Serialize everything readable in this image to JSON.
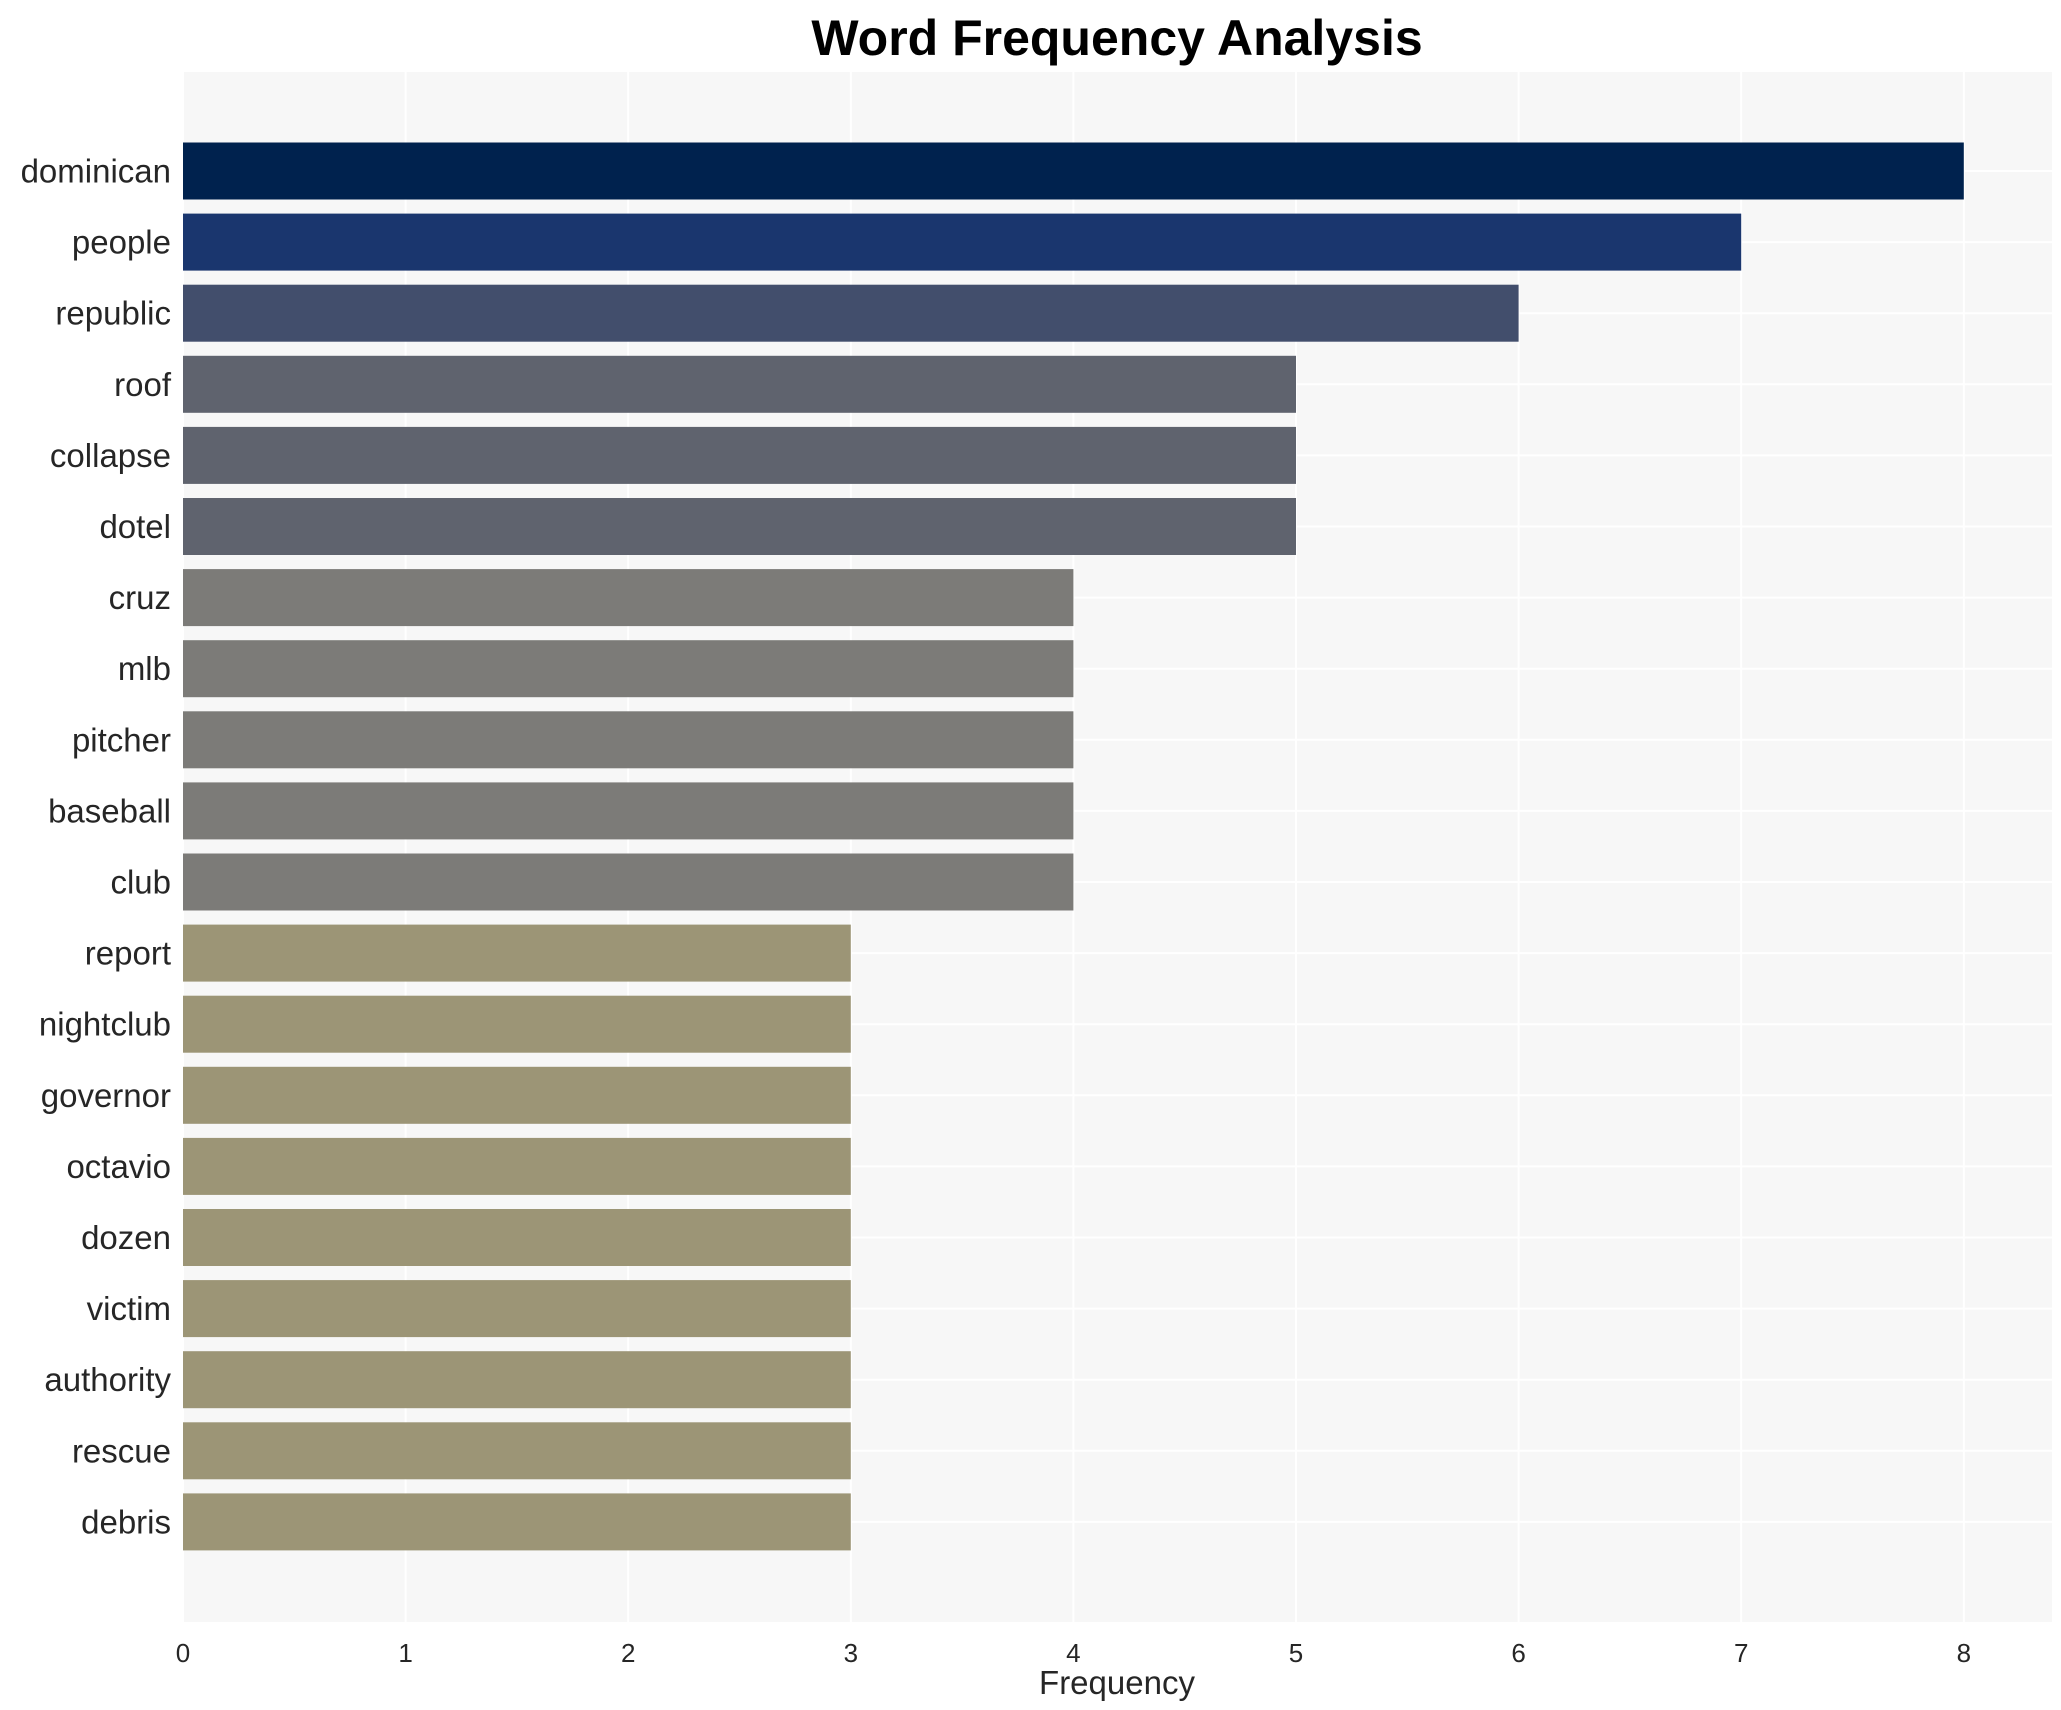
{
  "chart_data": {
    "type": "bar",
    "orientation": "horizontal",
    "title": "Word Frequency Analysis",
    "xlabel": "Frequency",
    "ylabel": "",
    "xlim": [
      0,
      8.4
    ],
    "x_ticks": [
      0,
      1,
      2,
      3,
      4,
      5,
      6,
      7,
      8
    ],
    "grid": true,
    "categories": [
      "dominican",
      "people",
      "republic",
      "roof",
      "collapse",
      "dotel",
      "cruz",
      "mlb",
      "pitcher",
      "baseball",
      "club",
      "report",
      "nightclub",
      "governor",
      "octavio",
      "dozen",
      "victim",
      "authority",
      "rescue",
      "debris"
    ],
    "values": [
      8,
      7,
      6,
      5,
      5,
      5,
      4,
      4,
      4,
      4,
      4,
      3,
      3,
      3,
      3,
      3,
      3,
      3,
      3,
      3
    ],
    "colors": {
      "8": "#00224e",
      "7": "#1a366e",
      "6": "#424e6c",
      "5": "#5f636e",
      "4": "#7c7b78",
      "3": "#9c9576"
    },
    "plot_background": "#f7f7f7",
    "grid_color": "#ffffff"
  }
}
